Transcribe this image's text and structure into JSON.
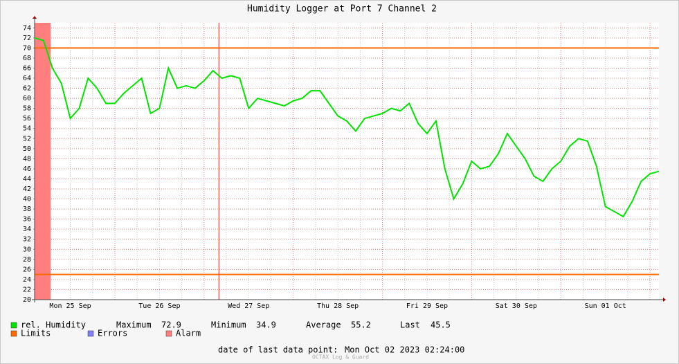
{
  "chart_data": {
    "type": "line",
    "title": "Humidity Logger at Port 7 Channel 2",
    "categories": [
      null,
      null,
      null,
      null,
      "Mon 25 Sep",
      null,
      null,
      null,
      null,
      null,
      null,
      null,
      null,
      null,
      "Tue 26 Sep",
      null,
      null,
      null,
      null,
      null,
      null,
      null,
      null,
      null,
      "Wed 27 Sep",
      null,
      null,
      null,
      null,
      null,
      null,
      null,
      null,
      null,
      "Thu 28 Sep",
      null,
      null,
      null,
      null,
      null,
      null,
      null,
      null,
      null,
      "Fri 29 Sep",
      null,
      null,
      null,
      null,
      null,
      null,
      null,
      null,
      null,
      "Sat 30 Sep",
      null,
      null,
      null,
      null,
      null,
      null,
      null,
      null,
      null,
      "Sun 01 Oct",
      null,
      null,
      null,
      null,
      null,
      null
    ],
    "series": [
      {
        "name": "rel. Humidity",
        "color": "#00e400",
        "values": [
          72,
          71.5,
          66,
          63,
          56,
          58,
          64,
          62,
          59,
          59,
          61,
          62.5,
          64,
          57,
          58,
          66,
          62,
          62.5,
          62,
          63.5,
          65.5,
          64,
          64.5,
          64,
          58,
          60,
          59.5,
          59,
          58.5,
          59.5,
          60,
          61.5,
          61.5,
          59,
          56.5,
          55.5,
          53.5,
          56,
          56.5,
          57,
          58,
          57.5,
          59,
          55,
          53,
          55.5,
          46,
          40,
          43,
          47.5,
          46,
          46.5,
          49,
          53,
          50.5,
          48,
          44.5,
          43.5,
          46,
          47.5,
          50.5,
          52,
          51.5,
          46.5,
          38.5,
          37.5,
          36.5,
          39.5,
          43.5,
          45,
          45.5
        ]
      }
    ],
    "limits": {
      "name": "Limits",
      "color": "#ff6a00",
      "values": [
        70,
        25
      ]
    },
    "errors": {
      "name": "Errors",
      "color": "#7f7fff"
    },
    "alarm": {
      "name": "Alarm",
      "color": "#ff7f7f",
      "spans": [
        [
          0,
          1.8
        ],
        [
          20.6,
          20.6
        ]
      ]
    },
    "ylim": [
      20,
      75
    ],
    "yticks": [
      20,
      22,
      24,
      26,
      28,
      30,
      32,
      34,
      36,
      38,
      40,
      42,
      44,
      46,
      48,
      50,
      52,
      54,
      56,
      58,
      60,
      62,
      64,
      66,
      68,
      70,
      72,
      74
    ],
    "grid": true,
    "stats": [
      {
        "label": "Maximum",
        "value": 72.9
      },
      {
        "label": "Minimum",
        "value": 34.9
      },
      {
        "label": "Average",
        "value": 55.2
      },
      {
        "label": "Last",
        "value": 45.5
      }
    ],
    "footer_label": "date of last data point:",
    "last_data_point": "Mon Oct 02 2023 02:24:00",
    "watermark": "OCTAX Log & Guard"
  }
}
